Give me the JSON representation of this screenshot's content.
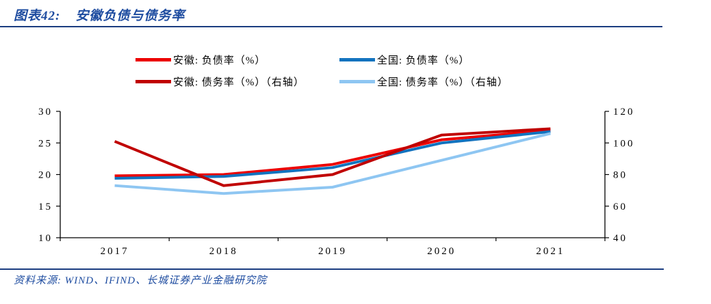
{
  "header": {
    "title_prefix": "图表42:",
    "title_main": "安徽负债与债务率"
  },
  "footer": {
    "source": "资料来源: WIND、IFIND、长城证券产业金融研究院"
  },
  "colors": {
    "brand_blue": "#1E4CA0",
    "rule_blue": "#1A3C80",
    "axis_black": "#000000"
  },
  "chart_data": {
    "type": "line",
    "title": "安徽负债与债务率",
    "categories": [
      "2017",
      "2018",
      "2019",
      "2020",
      "2021"
    ],
    "series": [
      {
        "name": "安徽: 负债率（%）",
        "axis": "left",
        "color": "#EC0000",
        "values": [
          19.8,
          20.0,
          21.6,
          25.5,
          27.0
        ]
      },
      {
        "name": "全国: 负债率（%）",
        "axis": "left",
        "color": "#1273BF",
        "values": [
          19.4,
          19.7,
          21.1,
          25.0,
          26.8
        ]
      },
      {
        "name": "安徽: 债务率（%）（右轴）",
        "axis": "right",
        "color": "#C00000",
        "values": [
          101,
          73,
          80,
          105,
          109
        ]
      },
      {
        "name": "全国: 债务率（%）（右轴）",
        "axis": "right",
        "color": "#8EC6F2",
        "values": [
          73,
          68,
          72,
          89,
          106
        ]
      }
    ],
    "left_axis": {
      "min": 10,
      "max": 30,
      "ticks": [
        10,
        15,
        20,
        25,
        30
      ]
    },
    "right_axis": {
      "min": 40,
      "max": 120,
      "ticks": [
        40,
        60,
        80,
        100,
        120
      ]
    },
    "legend_position": "top",
    "grid": false
  }
}
